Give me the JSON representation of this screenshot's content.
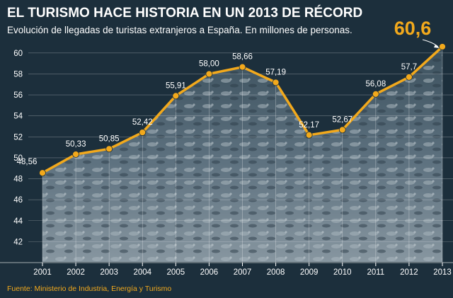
{
  "title": "EL TURISMO HACE HISTORIA EN UN 2013 DE RÉCORD",
  "subtitle": "Evolución de llegadas de turistas extranjeros a España. En millones de personas.",
  "source": "Fuente: Ministerio de Industria, Energía y Turismo",
  "highlight_label": "60,6",
  "colors": {
    "background": "#1c2f3c",
    "line": "#f2a91c",
    "text": "#ffffff",
    "highlight": "#f2a91c"
  },
  "chart_data": {
    "type": "line",
    "title": "EL TURISMO HACE HISTORIA EN UN 2013 DE RÉCORD",
    "subtitle": "Evolución de llegadas de turistas extranjeros a España. En millones de personas.",
    "xlabel": "",
    "ylabel": "",
    "categories": [
      "2001",
      "2002",
      "2003",
      "2004",
      "2005",
      "2006",
      "2007",
      "2008",
      "2009",
      "2010",
      "2011",
      "2012",
      "2013"
    ],
    "series": [
      {
        "values": [
          48.56,
          50.33,
          50.85,
          52.42,
          55.91,
          58.0,
          58.66,
          57.19,
          52.17,
          52.67,
          56.08,
          57.7,
          60.6
        ]
      }
    ],
    "data_labels": [
      "48,56",
      "50,33",
      "50,85",
      "52,42",
      "55,91",
      "58,00",
      "58,66",
      "57,19",
      "52,17",
      "52,67",
      "56,08",
      "57,7",
      ""
    ],
    "ylim": [
      40,
      61
    ],
    "yticks": [
      42,
      44,
      46,
      48,
      50,
      52,
      54,
      56,
      58,
      60
    ],
    "grid": true,
    "legend": "none"
  }
}
